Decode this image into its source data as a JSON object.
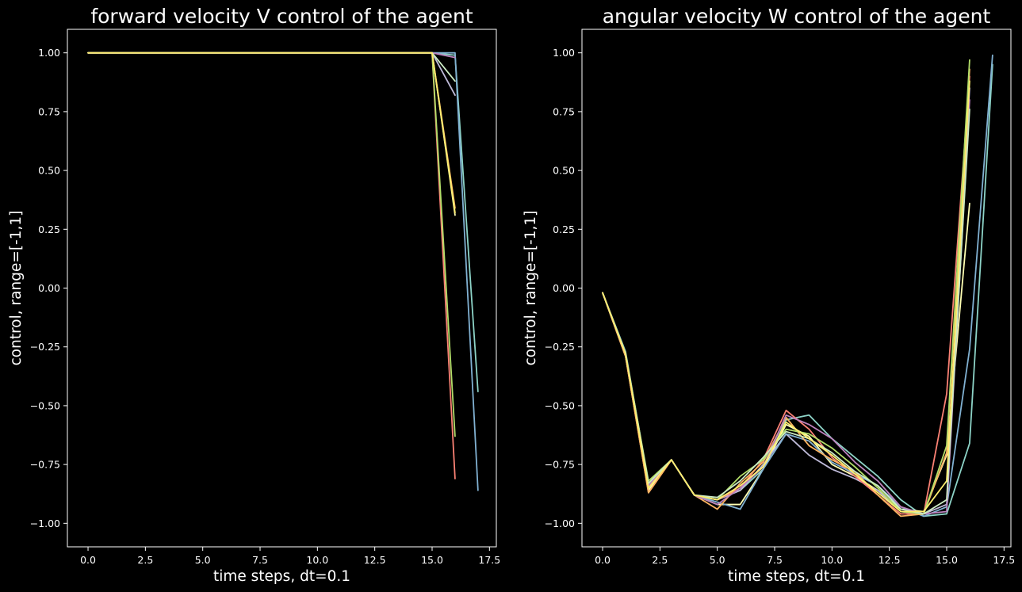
{
  "colors": [
    "#8dd3c7",
    "#feffb3",
    "#bfbbd9",
    "#fa8174",
    "#81b1d2",
    "#fdb462",
    "#b3de69",
    "#bc82bd",
    "#ccebc4",
    "#ffed6f"
  ],
  "chart_data": [
    {
      "type": "line",
      "title": "forward velocity V control of the agent",
      "xlabel": "time steps, dt=0.1",
      "ylabel": "control, range=[-1,1]",
      "xlim": [
        -0.9,
        17.8
      ],
      "ylim": [
        -1.1,
        1.1
      ],
      "xticks": [
        0.0,
        2.5,
        5.0,
        7.5,
        10.0,
        12.5,
        15.0,
        17.5
      ],
      "xtick_labels": [
        "0.0",
        "2.5",
        "5.0",
        "7.5",
        "10.0",
        "12.5",
        "15.0",
        "17.5"
      ],
      "yticks": [
        1.0,
        0.75,
        0.5,
        0.25,
        0.0,
        -0.25,
        -0.5,
        -0.75,
        -1.0
      ],
      "ytick_labels": [
        "1.00",
        "0.75",
        "0.50",
        "0.25",
        "0.00",
        "−0.25",
        "−0.50",
        "−0.75",
        "−1.00"
      ],
      "grid": false,
      "series": [
        {
          "x": [
            0,
            1,
            2,
            3,
            4,
            5,
            6,
            7,
            8,
            9,
            10,
            11,
            12,
            13,
            14,
            15,
            16,
            17
          ],
          "y": [
            1,
            1,
            1,
            1,
            1,
            1,
            1,
            1,
            1,
            1,
            1,
            1,
            1,
            1,
            1,
            1,
            0.99,
            -0.44
          ]
        },
        {
          "x": [
            0,
            1,
            2,
            3,
            4,
            5,
            6,
            7,
            8,
            9,
            10,
            11,
            12,
            13,
            14,
            15,
            16
          ],
          "y": [
            1,
            1,
            1,
            1,
            1,
            1,
            1,
            1,
            1,
            1,
            1,
            1,
            1,
            1,
            1,
            1,
            0.31
          ]
        },
        {
          "x": [
            0,
            1,
            2,
            3,
            4,
            5,
            6,
            7,
            8,
            9,
            10,
            11,
            12,
            13,
            14,
            15,
            16
          ],
          "y": [
            1,
            1,
            1,
            1,
            1,
            1,
            1,
            1,
            1,
            1,
            1,
            1,
            1,
            1,
            1,
            1,
            0.82
          ]
        },
        {
          "x": [
            0,
            1,
            2,
            3,
            4,
            5,
            6,
            7,
            8,
            9,
            10,
            11,
            12,
            13,
            14,
            15,
            16
          ],
          "y": [
            1,
            1,
            1,
            1,
            1,
            1,
            1,
            1,
            1,
            1,
            1,
            1,
            1,
            1,
            1,
            1,
            -0.81
          ]
        },
        {
          "x": [
            0,
            1,
            2,
            3,
            4,
            5,
            6,
            7,
            8,
            9,
            10,
            11,
            12,
            13,
            14,
            15,
            16,
            17
          ],
          "y": [
            1,
            1,
            1,
            1,
            1,
            1,
            1,
            1,
            1,
            1,
            1,
            1,
            1,
            1,
            1,
            1,
            1.0,
            -0.86
          ]
        },
        {
          "x": [
            0,
            1,
            2,
            3,
            4,
            5,
            6,
            7,
            8,
            9,
            10,
            11,
            12,
            13,
            14,
            15,
            16
          ],
          "y": [
            1,
            1,
            1,
            1,
            1,
            1,
            1,
            1,
            1,
            1,
            1,
            1,
            1,
            1,
            1,
            1,
            0.34
          ]
        },
        {
          "x": [
            0,
            1,
            2,
            3,
            4,
            5,
            6,
            7,
            8,
            9,
            10,
            11,
            12,
            13,
            14,
            15,
            16
          ],
          "y": [
            1,
            1,
            1,
            1,
            1,
            1,
            1,
            1,
            1,
            1,
            1,
            1,
            1,
            1,
            1,
            1,
            -0.63
          ]
        },
        {
          "x": [
            0,
            1,
            2,
            3,
            4,
            5,
            6,
            7,
            8,
            9,
            10,
            11,
            12,
            13,
            14,
            15,
            16
          ],
          "y": [
            1,
            1,
            1,
            1,
            1,
            1,
            1,
            1,
            1,
            1,
            1,
            1,
            1,
            1,
            1,
            1,
            0.98
          ]
        },
        {
          "x": [
            0,
            1,
            2,
            3,
            4,
            5,
            6,
            7,
            8,
            9,
            10,
            11,
            12,
            13,
            14,
            15,
            16
          ],
          "y": [
            1,
            1,
            1,
            1,
            1,
            1,
            1,
            1,
            1,
            1,
            1,
            1,
            1,
            1,
            1,
            1,
            0.88
          ]
        },
        {
          "x": [
            0,
            1,
            2,
            3,
            4,
            5,
            6,
            7,
            8,
            9,
            10,
            11,
            12,
            13,
            14,
            15,
            16
          ],
          "y": [
            1,
            1,
            1,
            1,
            1,
            1,
            1,
            1,
            1,
            1,
            1,
            1,
            1,
            1,
            1,
            1,
            0.32
          ]
        }
      ]
    },
    {
      "type": "line",
      "title": "angular velocity W control of the agent",
      "xlabel": "time steps, dt=0.1",
      "ylabel": "control, range=[-1,1]",
      "xlim": [
        -0.9,
        17.8
      ],
      "ylim": [
        -1.1,
        1.1
      ],
      "xticks": [
        0.0,
        2.5,
        5.0,
        7.5,
        10.0,
        12.5,
        15.0,
        17.5
      ],
      "xtick_labels": [
        "0.0",
        "2.5",
        "5.0",
        "7.5",
        "10.0",
        "12.5",
        "15.0",
        "17.5"
      ],
      "yticks": [
        1.0,
        0.75,
        0.5,
        0.25,
        0.0,
        -0.25,
        -0.5,
        -0.75,
        -1.0
      ],
      "ytick_labels": [
        "1.00",
        "0.75",
        "0.50",
        "0.25",
        "0.00",
        "−0.25",
        "−0.50",
        "−0.75",
        "−1.00"
      ],
      "grid": false,
      "series": [
        {
          "x": [
            0,
            1,
            2,
            3,
            4,
            5,
            6,
            7,
            8,
            9,
            10,
            11,
            12,
            13,
            14,
            15,
            16,
            17
          ],
          "y": [
            -0.02,
            -0.27,
            -0.83,
            -0.73,
            -0.88,
            -0.9,
            -0.86,
            -0.77,
            -0.56,
            -0.54,
            -0.64,
            -0.72,
            -0.8,
            -0.9,
            -0.97,
            -0.96,
            -0.66,
            0.95
          ]
        },
        {
          "x": [
            0,
            1,
            2,
            3,
            4,
            5,
            6,
            7,
            8,
            9,
            10,
            11,
            12,
            13,
            14,
            15,
            16
          ],
          "y": [
            -0.02,
            -0.29,
            -0.86,
            -0.73,
            -0.88,
            -0.92,
            -0.92,
            -0.77,
            -0.58,
            -0.63,
            -0.75,
            -0.8,
            -0.86,
            -0.94,
            -0.95,
            -0.71,
            0.36
          ]
        },
        {
          "x": [
            0,
            1,
            2,
            3,
            4,
            5,
            6,
            7,
            8,
            9,
            10,
            11,
            12,
            13,
            14,
            15,
            16
          ],
          "y": [
            -0.02,
            -0.28,
            -0.85,
            -0.73,
            -0.88,
            -0.9,
            -0.86,
            -0.75,
            -0.62,
            -0.71,
            -0.77,
            -0.81,
            -0.86,
            -0.95,
            -0.96,
            -0.92,
            0.85
          ]
        },
        {
          "x": [
            0,
            1,
            2,
            3,
            4,
            5,
            6,
            7,
            8,
            9,
            10,
            11,
            12,
            13,
            14,
            15,
            16
          ],
          "y": [
            -0.02,
            -0.29,
            -0.87,
            -0.73,
            -0.88,
            -0.9,
            -0.85,
            -0.73,
            -0.52,
            -0.6,
            -0.72,
            -0.8,
            -0.88,
            -0.96,
            -0.96,
            -0.45,
            0.9
          ]
        },
        {
          "x": [
            0,
            1,
            2,
            3,
            4,
            5,
            6,
            7,
            8,
            9,
            10,
            11,
            12,
            13,
            14,
            15,
            16,
            17
          ],
          "y": [
            -0.02,
            -0.28,
            -0.84,
            -0.73,
            -0.88,
            -0.91,
            -0.94,
            -0.77,
            -0.62,
            -0.65,
            -0.74,
            -0.79,
            -0.84,
            -0.93,
            -0.97,
            -0.93,
            -0.26,
            0.99
          ]
        },
        {
          "x": [
            0,
            1,
            2,
            3,
            4,
            5,
            6,
            7,
            8,
            9,
            10,
            11,
            12,
            13,
            14,
            15,
            16
          ],
          "y": [
            -0.02,
            -0.29,
            -0.87,
            -0.73,
            -0.88,
            -0.94,
            -0.83,
            -0.74,
            -0.55,
            -0.67,
            -0.73,
            -0.78,
            -0.88,
            -0.97,
            -0.96,
            -0.7,
            0.93
          ]
        },
        {
          "x": [
            0,
            1,
            2,
            3,
            4,
            5,
            6,
            7,
            8,
            9,
            10,
            11,
            12,
            13,
            14,
            15,
            16
          ],
          "y": [
            -0.02,
            -0.28,
            -0.82,
            -0.73,
            -0.88,
            -0.9,
            -0.8,
            -0.73,
            -0.6,
            -0.62,
            -0.68,
            -0.76,
            -0.85,
            -0.95,
            -0.96,
            -0.67,
            0.97
          ]
        },
        {
          "x": [
            0,
            1,
            2,
            3,
            4,
            5,
            6,
            7,
            8,
            9,
            10,
            11,
            12,
            13,
            14,
            15,
            16
          ],
          "y": [
            -0.02,
            -0.28,
            -0.84,
            -0.73,
            -0.88,
            -0.92,
            -0.85,
            -0.76,
            -0.54,
            -0.58,
            -0.64,
            -0.74,
            -0.82,
            -0.93,
            -0.96,
            -0.95,
            0.8
          ]
        },
        {
          "x": [
            0,
            1,
            2,
            3,
            4,
            5,
            6,
            7,
            8,
            9,
            10,
            11,
            12,
            13,
            14,
            15,
            16
          ],
          "y": [
            -0.02,
            -0.28,
            -0.83,
            -0.73,
            -0.88,
            -0.89,
            -0.82,
            -0.72,
            -0.61,
            -0.64,
            -0.7,
            -0.78,
            -0.84,
            -0.94,
            -0.96,
            -0.9,
            0.76
          ]
        },
        {
          "x": [
            0,
            1,
            2,
            3,
            4,
            5,
            6,
            7,
            8,
            9,
            10,
            11,
            12,
            13,
            14,
            15,
            16
          ],
          "y": [
            -0.02,
            -0.28,
            -0.85,
            -0.73,
            -0.88,
            -0.9,
            -0.84,
            -0.76,
            -0.57,
            -0.64,
            -0.71,
            -0.79,
            -0.87,
            -0.95,
            -0.95,
            -0.82,
            0.88
          ]
        }
      ]
    }
  ]
}
